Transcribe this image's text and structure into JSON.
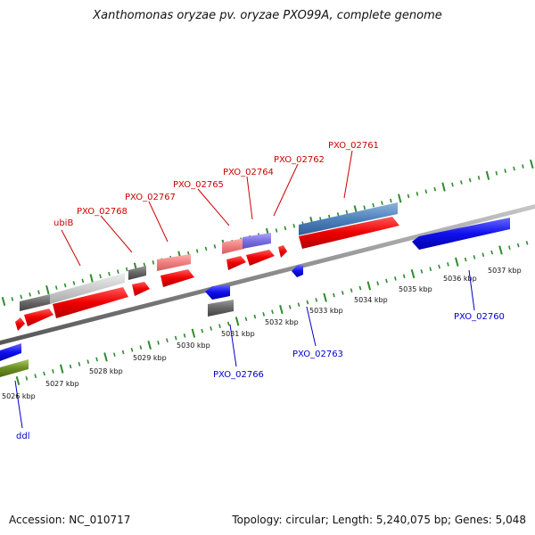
{
  "title": "Xanthomonas oryzae pv. oryzae PXO99A, complete genome",
  "accession": "Accession: NC_010717",
  "summary": "Topology: circular; Length: 5,240,075 bp; Genes: 5,048",
  "colors": {
    "top_gene_labels": "#cc0000",
    "bottom_gene_labels": "#0000cc",
    "ticks": "#2e8b2e",
    "backbone": "#8a8a8a"
  },
  "tick_labels": [
    "5026 kbp",
    "5027 kbp",
    "5028 kbp",
    "5029 kbp",
    "5030 kbp",
    "5031 kbp",
    "5032 kbp",
    "5033 kbp",
    "5034 kbp",
    "5035 kbp",
    "5036 kbp",
    "5037 kbp"
  ],
  "top_gene_labels": [
    "ubiB",
    "PXO_02768",
    "PXO_02767",
    "PXO_02765",
    "PXO_02764",
    "PXO_02762",
    "PXO_02761"
  ],
  "bottom_gene_labels": [
    "ddl",
    "PXO_02766",
    "PXO_02763",
    "PXO_02760"
  ]
}
